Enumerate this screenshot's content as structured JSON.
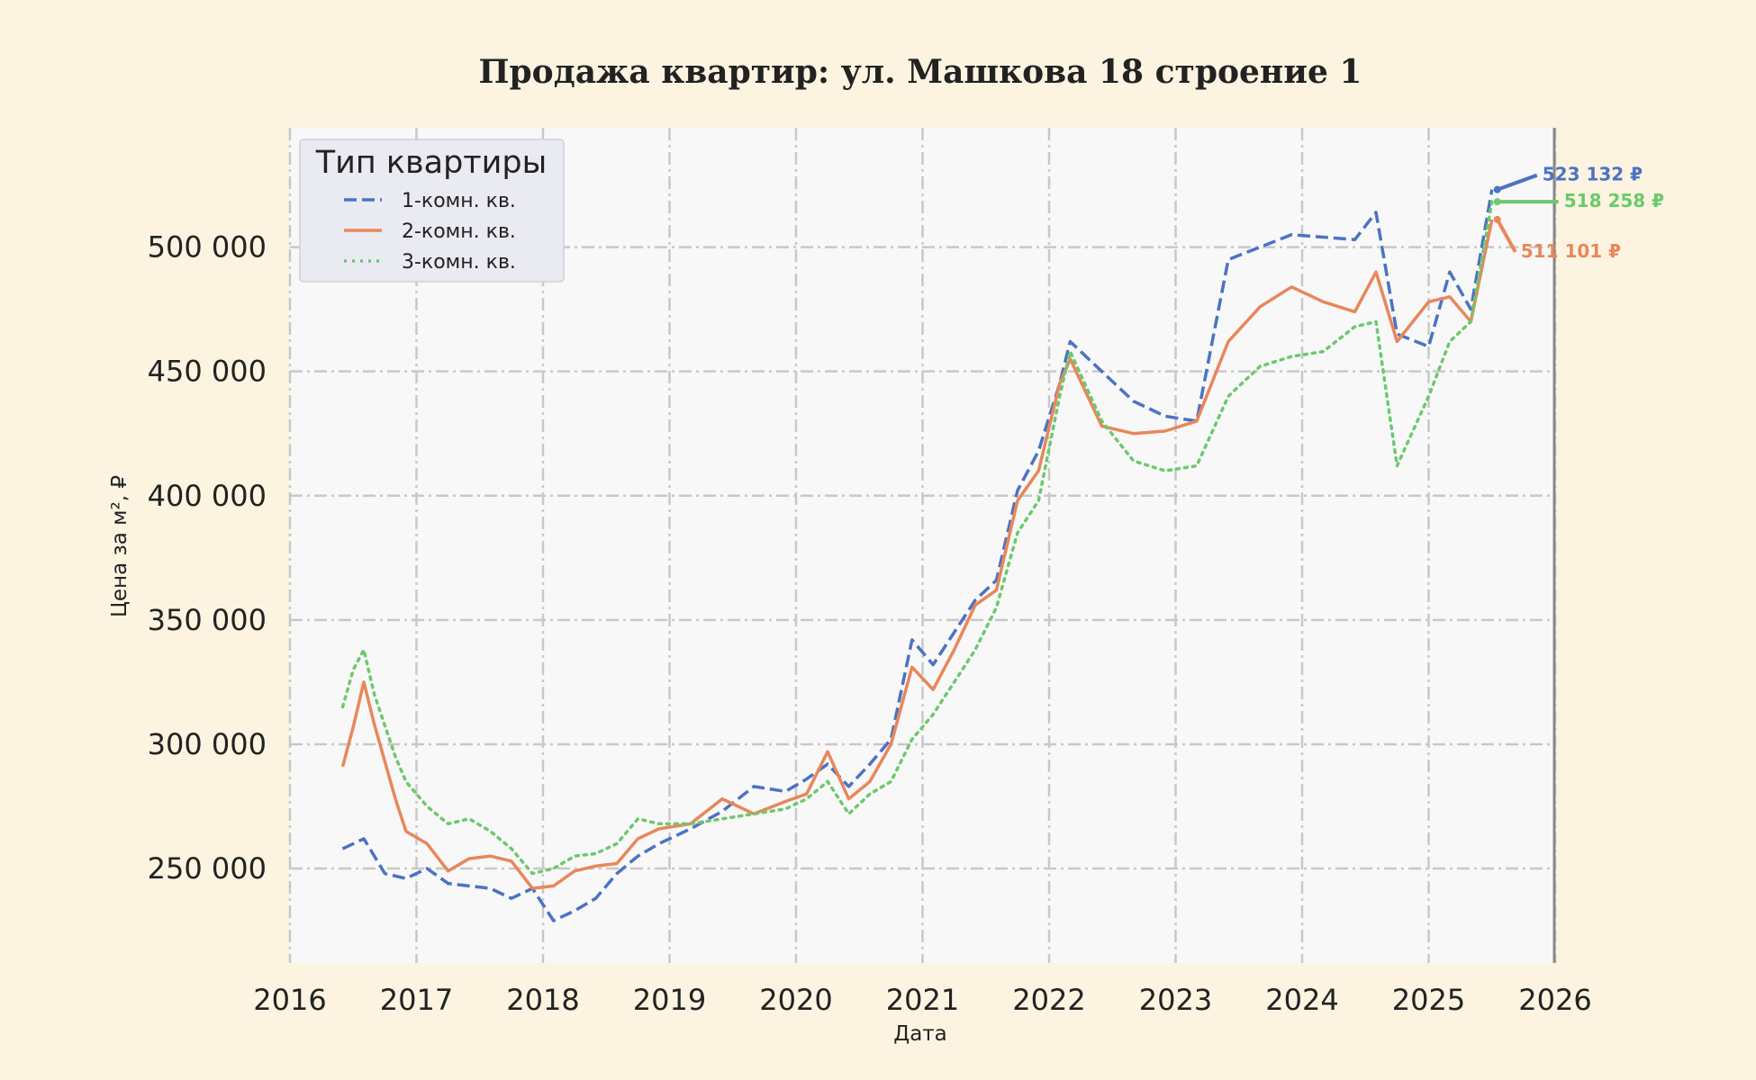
{
  "chart_data": {
    "type": "line",
    "title": "Продажа квартир: ул. Машкова 18 строение 1",
    "xlabel": "Дата",
    "ylabel": "Цена за м², ₽",
    "xlim": [
      "2016-01-01",
      "2026-01-01"
    ],
    "ylim": [
      212000,
      548000
    ],
    "x_ticks": [
      "2016",
      "2017",
      "2018",
      "2019",
      "2020",
      "2021",
      "2022",
      "2023",
      "2024",
      "2025",
      "2026"
    ],
    "y_ticks": [
      250000,
      300000,
      350000,
      400000,
      450000,
      500000
    ],
    "y_tick_labels": [
      "250 000",
      "300 000",
      "350 000",
      "400 000",
      "450 000",
      "500 000"
    ],
    "grid": true,
    "legend": {
      "title": "Тип квартиры",
      "placement": "top-left"
    },
    "series": [
      {
        "name": "1-комн. кв.",
        "color": "#4c72c4",
        "style": "dashed",
        "end_label": "523 132 ₽",
        "points": [
          [
            "2016-06",
            258000
          ],
          [
            "2016-08",
            262000
          ],
          [
            "2016-10",
            248000
          ],
          [
            "2016-12",
            246000
          ],
          [
            "2017-02",
            250000
          ],
          [
            "2017-04",
            244000
          ],
          [
            "2017-06",
            243000
          ],
          [
            "2017-08",
            242000
          ],
          [
            "2017-10",
            238000
          ],
          [
            "2017-12",
            242000
          ],
          [
            "2018-02",
            229000
          ],
          [
            "2018-04",
            233000
          ],
          [
            "2018-06",
            238000
          ],
          [
            "2018-08",
            248000
          ],
          [
            "2018-10",
            255000
          ],
          [
            "2018-12",
            260000
          ],
          [
            "2019-03",
            266000
          ],
          [
            "2019-06",
            273000
          ],
          [
            "2019-09",
            283000
          ],
          [
            "2019-12",
            281000
          ],
          [
            "2020-02",
            286000
          ],
          [
            "2020-04",
            292000
          ],
          [
            "2020-06",
            283000
          ],
          [
            "2020-08",
            292000
          ],
          [
            "2020-10",
            302000
          ],
          [
            "2020-12",
            342000
          ],
          [
            "2021-02",
            332000
          ],
          [
            "2021-04",
            345000
          ],
          [
            "2021-06",
            358000
          ],
          [
            "2021-08",
            366000
          ],
          [
            "2021-10",
            402000
          ],
          [
            "2021-12",
            418000
          ],
          [
            "2022-02",
            445000
          ],
          [
            "2022-03",
            462000
          ],
          [
            "2022-06",
            450000
          ],
          [
            "2022-09",
            438000
          ],
          [
            "2022-12",
            432000
          ],
          [
            "2023-03",
            430000
          ],
          [
            "2023-06",
            495000
          ],
          [
            "2023-09",
            500000
          ],
          [
            "2023-12",
            505000
          ],
          [
            "2024-03",
            504000
          ],
          [
            "2024-06",
            503000
          ],
          [
            "2024-08",
            514000
          ],
          [
            "2024-10",
            465000
          ],
          [
            "2025-01",
            460000
          ],
          [
            "2025-03",
            490000
          ],
          [
            "2025-05",
            475000
          ],
          [
            "2025-07",
            523132
          ]
        ]
      },
      {
        "name": "2-комн. кв.",
        "color": "#e8875a",
        "style": "solid",
        "end_label": "511 101 ₽",
        "points": [
          [
            "2016-06",
            291000
          ],
          [
            "2016-07",
            307000
          ],
          [
            "2016-08",
            325000
          ],
          [
            "2016-09",
            308000
          ],
          [
            "2016-11",
            278000
          ],
          [
            "2016-12",
            265000
          ],
          [
            "2017-02",
            260000
          ],
          [
            "2017-04",
            249000
          ],
          [
            "2017-06",
            254000
          ],
          [
            "2017-08",
            255000
          ],
          [
            "2017-10",
            253000
          ],
          [
            "2017-12",
            242000
          ],
          [
            "2018-02",
            243000
          ],
          [
            "2018-04",
            249000
          ],
          [
            "2018-06",
            251000
          ],
          [
            "2018-08",
            252000
          ],
          [
            "2018-10",
            262000
          ],
          [
            "2018-12",
            266000
          ],
          [
            "2019-03",
            268000
          ],
          [
            "2019-06",
            278000
          ],
          [
            "2019-09",
            272000
          ],
          [
            "2019-12",
            277000
          ],
          [
            "2020-02",
            280000
          ],
          [
            "2020-04",
            297000
          ],
          [
            "2020-06",
            278000
          ],
          [
            "2020-08",
            285000
          ],
          [
            "2020-10",
            300000
          ],
          [
            "2020-12",
            331000
          ],
          [
            "2021-02",
            322000
          ],
          [
            "2021-04",
            338000
          ],
          [
            "2021-06",
            356000
          ],
          [
            "2021-08",
            362000
          ],
          [
            "2021-10",
            398000
          ],
          [
            "2021-12",
            410000
          ],
          [
            "2022-02",
            445000
          ],
          [
            "2022-03",
            455000
          ],
          [
            "2022-06",
            428000
          ],
          [
            "2022-09",
            425000
          ],
          [
            "2022-12",
            426000
          ],
          [
            "2023-03",
            430000
          ],
          [
            "2023-06",
            462000
          ],
          [
            "2023-09",
            476000
          ],
          [
            "2023-12",
            484000
          ],
          [
            "2024-03",
            478000
          ],
          [
            "2024-06",
            474000
          ],
          [
            "2024-08",
            490000
          ],
          [
            "2024-10",
            462000
          ],
          [
            "2025-01",
            478000
          ],
          [
            "2025-03",
            480000
          ],
          [
            "2025-05",
            470000
          ],
          [
            "2025-07",
            511101
          ]
        ]
      },
      {
        "name": "3-комн. кв.",
        "color": "#6cc96c",
        "style": "dotted",
        "end_label": "518 258 ₽",
        "points": [
          [
            "2016-06",
            315000
          ],
          [
            "2016-07",
            330000
          ],
          [
            "2016-08",
            338000
          ],
          [
            "2016-09",
            320000
          ],
          [
            "2016-11",
            295000
          ],
          [
            "2016-12",
            285000
          ],
          [
            "2017-02",
            275000
          ],
          [
            "2017-04",
            268000
          ],
          [
            "2017-06",
            270000
          ],
          [
            "2017-08",
            265000
          ],
          [
            "2017-10",
            258000
          ],
          [
            "2017-12",
            248000
          ],
          [
            "2018-02",
            250000
          ],
          [
            "2018-04",
            255000
          ],
          [
            "2018-06",
            256000
          ],
          [
            "2018-08",
            260000
          ],
          [
            "2018-10",
            270000
          ],
          [
            "2018-12",
            268000
          ],
          [
            "2019-03",
            268000
          ],
          [
            "2019-06",
            270000
          ],
          [
            "2019-09",
            272000
          ],
          [
            "2019-12",
            274000
          ],
          [
            "2020-02",
            278000
          ],
          [
            "2020-04",
            285000
          ],
          [
            "2020-06",
            272000
          ],
          [
            "2020-08",
            280000
          ],
          [
            "2020-10",
            285000
          ],
          [
            "2020-12",
            302000
          ],
          [
            "2021-02",
            312000
          ],
          [
            "2021-04",
            325000
          ],
          [
            "2021-06",
            338000
          ],
          [
            "2021-08",
            355000
          ],
          [
            "2021-10",
            385000
          ],
          [
            "2021-12",
            398000
          ],
          [
            "2022-02",
            440000
          ],
          [
            "2022-03",
            458000
          ],
          [
            "2022-06",
            430000
          ],
          [
            "2022-09",
            414000
          ],
          [
            "2022-12",
            410000
          ],
          [
            "2023-03",
            412000
          ],
          [
            "2023-06",
            440000
          ],
          [
            "2023-09",
            452000
          ],
          [
            "2023-12",
            456000
          ],
          [
            "2024-03",
            458000
          ],
          [
            "2024-06",
            468000
          ],
          [
            "2024-08",
            470000
          ],
          [
            "2024-10",
            412000
          ],
          [
            "2025-01",
            440000
          ],
          [
            "2025-03",
            462000
          ],
          [
            "2025-05",
            470000
          ],
          [
            "2025-07",
            518258
          ]
        ]
      }
    ]
  }
}
